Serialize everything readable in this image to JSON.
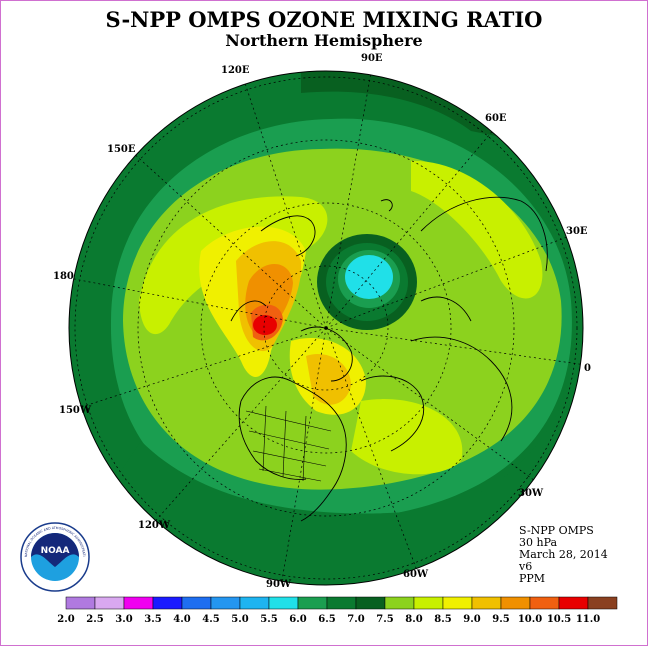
{
  "title": "S-NPP OMPS OZONE MIXING RATIO",
  "subtitle": "Northern Hemisphere",
  "longitude_labels": [
    "90E",
    "60E",
    "30E",
    "0",
    "30W",
    "60W",
    "90W",
    "120W",
    "150W",
    "180",
    "150E",
    "120E"
  ],
  "info": {
    "instrument": "S-NPP OMPS",
    "level": "30 hPa",
    "date": "March 28, 2014",
    "version": "v6",
    "units": "PPM"
  },
  "logo": {
    "text": "NOAA",
    "ring_text": "NATIONAL OCEANIC AND ATMOSPHERIC ADMINISTRATION · U.S. DEPARTMENT OF COMMERCE",
    "icon": "noaa-logo"
  },
  "colorbar": {
    "ticks": [
      "2.0",
      "2.5",
      "3.0",
      "3.5",
      "4.0",
      "4.5",
      "5.0",
      "5.5",
      "6.0",
      "6.5",
      "7.0",
      "7.5",
      "8.0",
      "8.5",
      "9.0",
      "9.5",
      "10.0",
      "10.5",
      "11.0"
    ],
    "colors": [
      "#b07ae0",
      "#d9a8f0",
      "#f000f0",
      "#1a1aff",
      "#1e6ef0",
      "#2496f0",
      "#1eb4f0",
      "#20e0e8",
      "#1a9e50",
      "#0a7a30",
      "#086020",
      "#8cd21e",
      "#c8f000",
      "#f0f000",
      "#f0c000",
      "#f09000",
      "#f06010",
      "#e80000",
      "#8a4020"
    ]
  }
}
